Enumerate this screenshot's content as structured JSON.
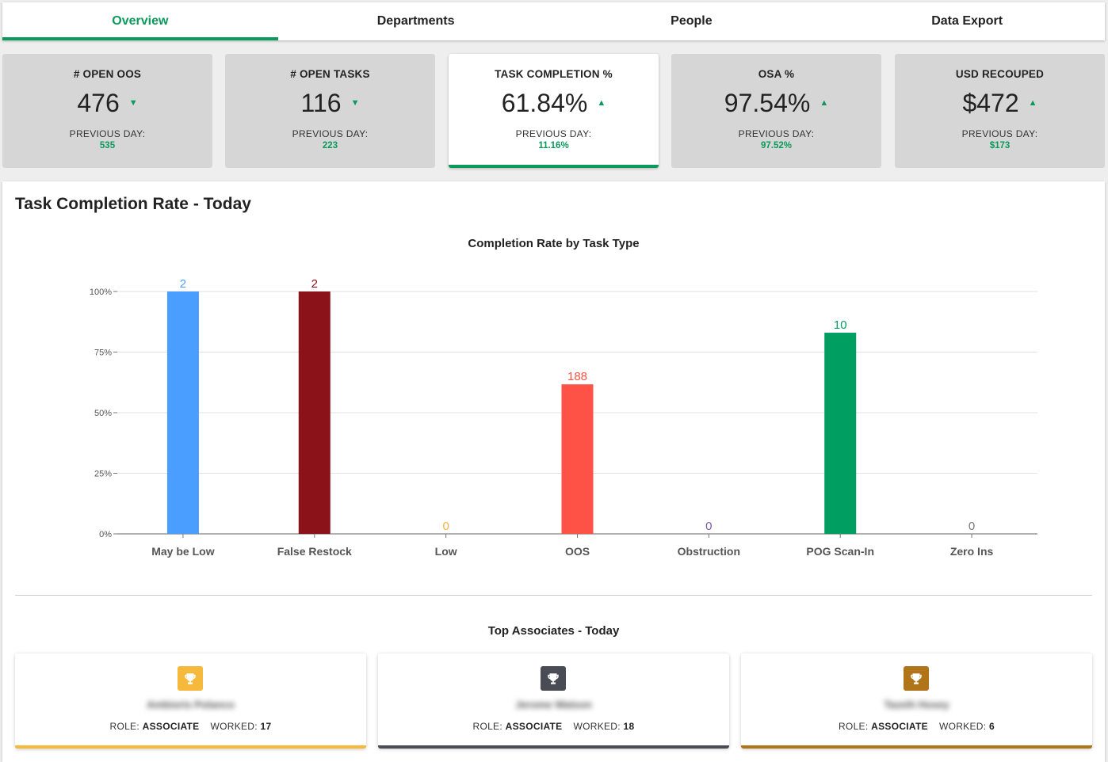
{
  "tabs": [
    {
      "label": "Overview",
      "active": true
    },
    {
      "label": "Departments",
      "active": false
    },
    {
      "label": "People",
      "active": false
    },
    {
      "label": "Data Export",
      "active": false
    }
  ],
  "kpis": [
    {
      "title": "# OPEN OOS",
      "value": "476",
      "arrow": "down",
      "prev_label": "PREVIOUS DAY:",
      "prev_value": "535",
      "active": false
    },
    {
      "title": "# OPEN TASKS",
      "value": "116",
      "arrow": "down",
      "prev_label": "PREVIOUS DAY:",
      "prev_value": "223",
      "active": false
    },
    {
      "title": "TASK COMPLETION %",
      "value": "61.84%",
      "arrow": "up",
      "prev_label": "PREVIOUS DAY:",
      "prev_value": "11.16%",
      "active": true
    },
    {
      "title": "OSA %",
      "value": "97.54%",
      "arrow": "up",
      "prev_label": "PREVIOUS DAY:",
      "prev_value": "97.52%",
      "active": false
    },
    {
      "title": "USD RECOUPED",
      "value": "$472",
      "arrow": "up",
      "prev_label": "PREVIOUS DAY:",
      "prev_value": "$173",
      "active": false
    }
  ],
  "panel": {
    "title": "Task Completion Rate - Today",
    "associates_title": "Top Associates - Today"
  },
  "chart_data": {
    "type": "bar",
    "title": "Completion Rate by Task Type",
    "xlabel": "",
    "ylabel": "",
    "ylim": [
      0,
      100
    ],
    "yticks": [
      "0%",
      "25%",
      "50%",
      "75%",
      "100%"
    ],
    "grid": true,
    "categories": [
      "May be Low",
      "False Restock",
      "Low",
      "OOS",
      "Obstruction",
      "POG Scan-In",
      "Zero Ins"
    ],
    "values": [
      100,
      100,
      0,
      61.7,
      0,
      83,
      0
    ],
    "labels": [
      "2",
      "2",
      "0",
      "188",
      "0",
      "10",
      "0"
    ],
    "colors": [
      "#4a9eff",
      "#8b1219",
      "#f5b041",
      "#ff5247",
      "#7d5ba6",
      "#009e60",
      "#777777"
    ]
  },
  "associates": [
    {
      "name": "Ambioris Polanco",
      "role_label": "ROLE:",
      "role": "ASSOCIATE",
      "worked_label": "WORKED:",
      "worked": "17",
      "color": "#f6b93b"
    },
    {
      "name": "Jerome Watson",
      "role_label": "ROLE:",
      "role": "ASSOCIATE",
      "worked_label": "WORKED:",
      "worked": "18",
      "color": "#494c55"
    },
    {
      "name": "Tazeih Hosey",
      "role_label": "ROLE:",
      "role": "ASSOCIATE",
      "worked_label": "WORKED:",
      "worked": "6",
      "color": "#b07419"
    }
  ]
}
